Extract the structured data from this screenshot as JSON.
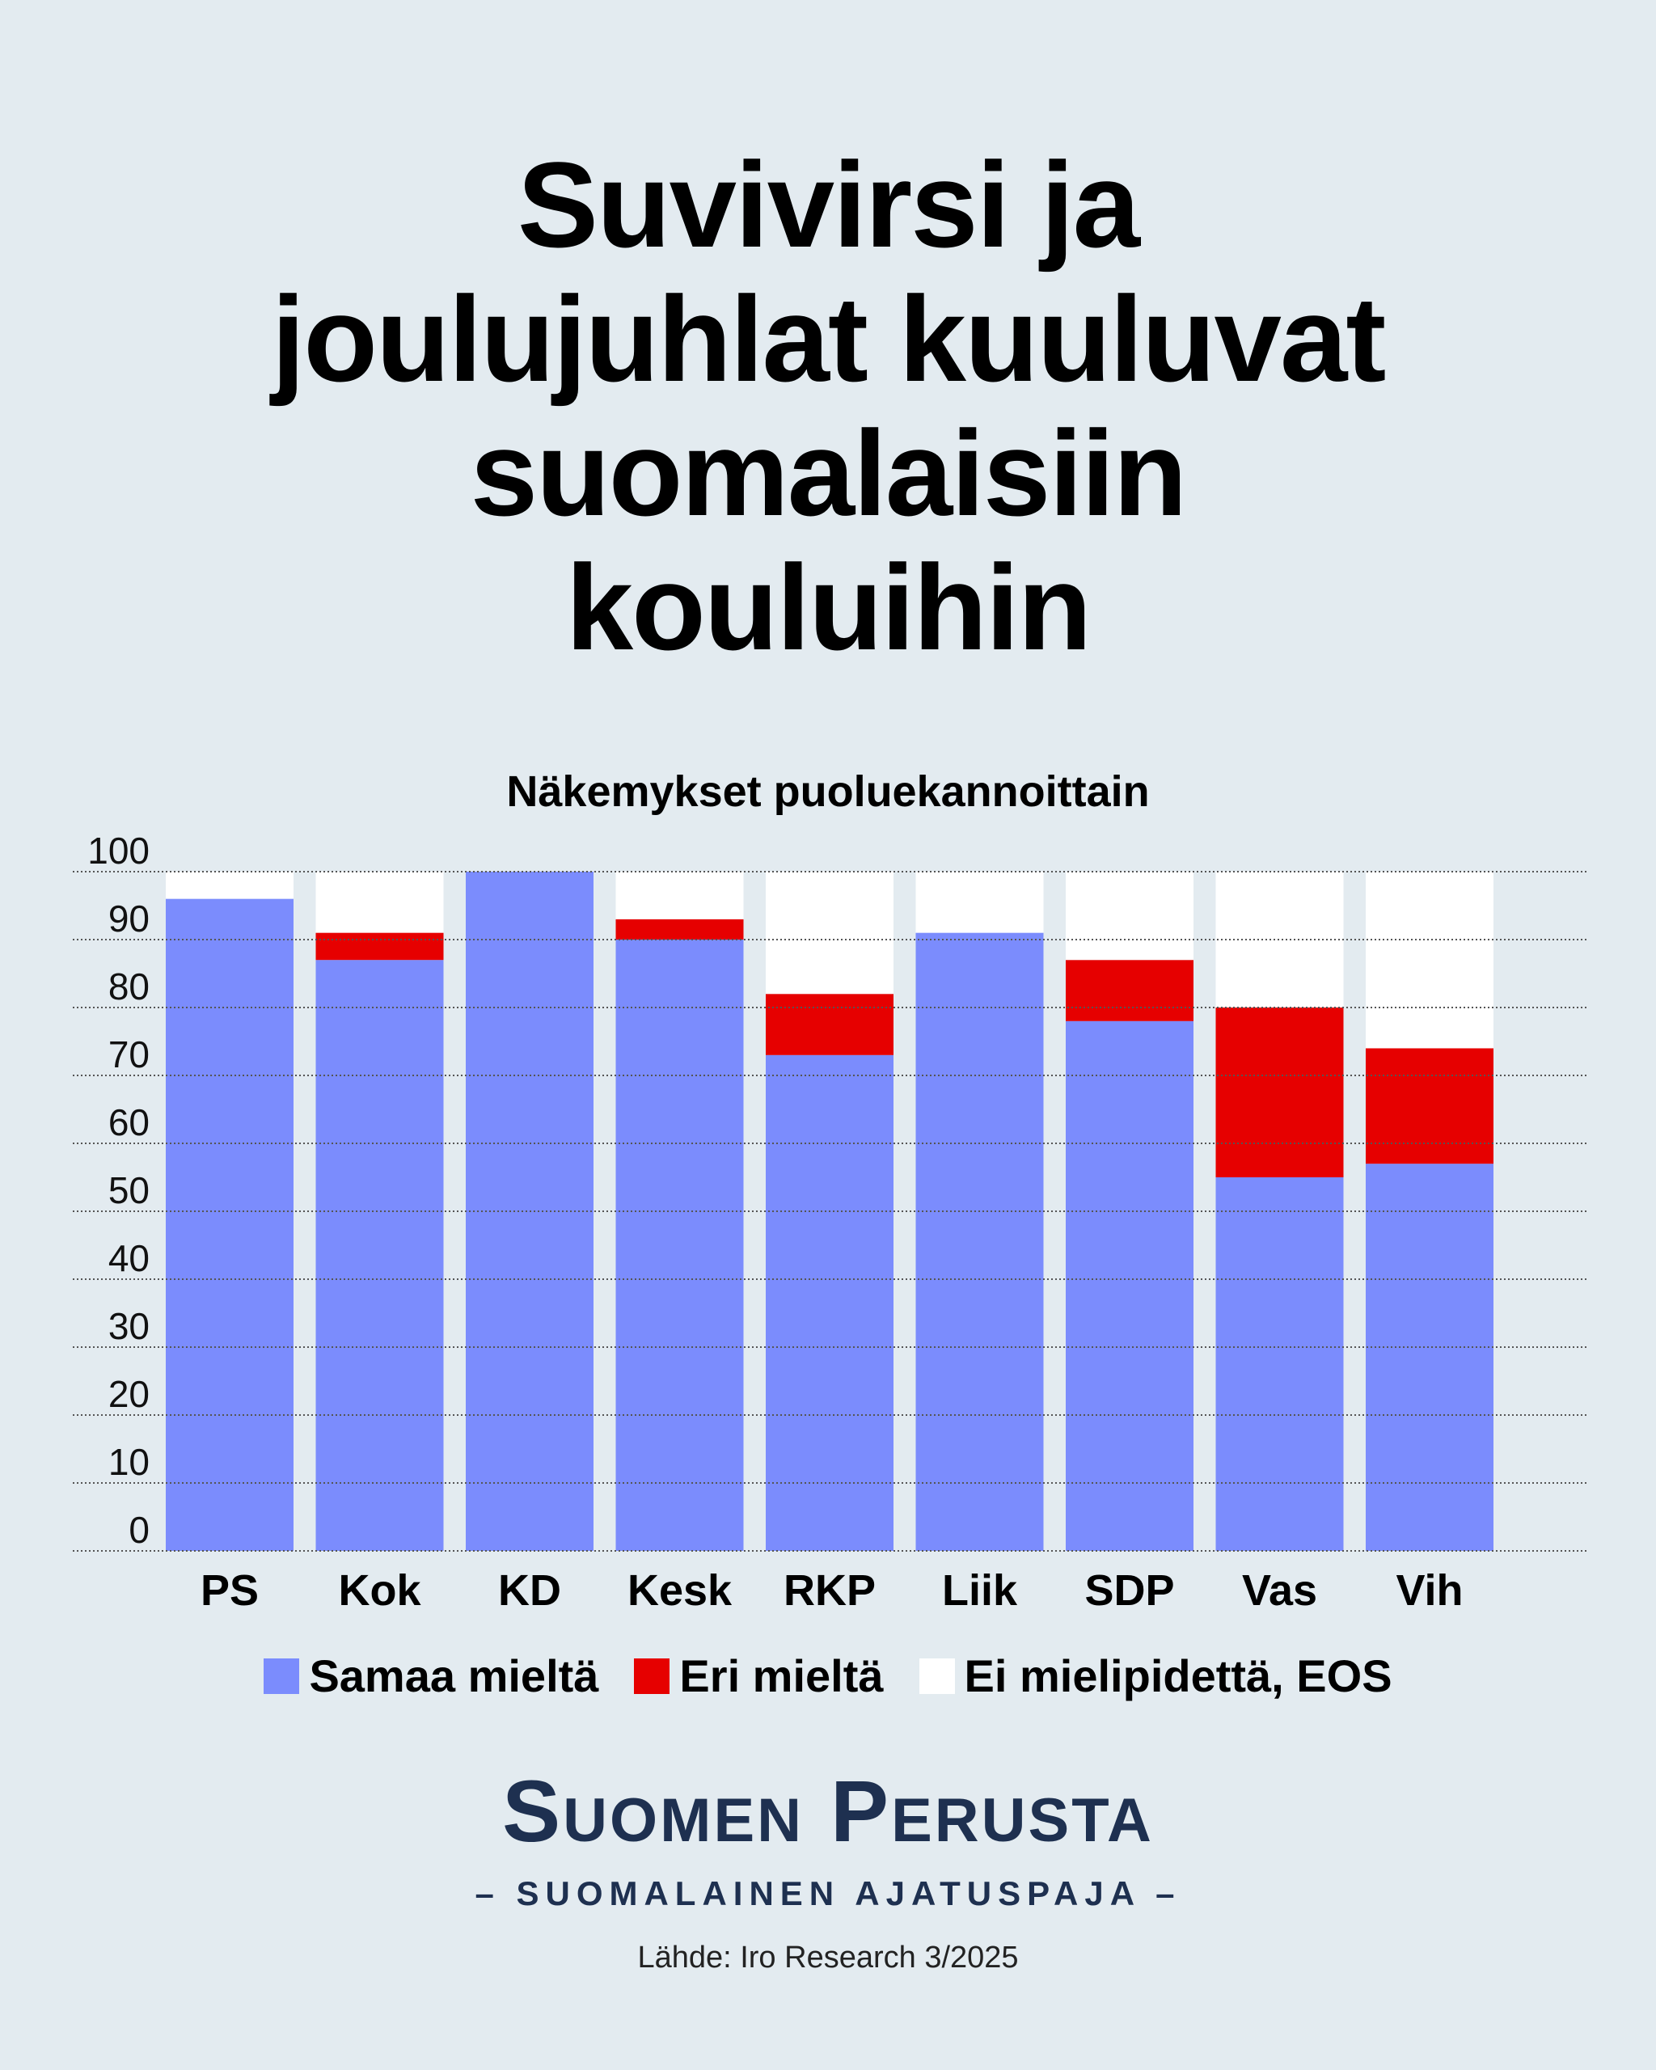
{
  "title_lines": [
    "Suvivirsi ja",
    "joulujuhlat kuuluvat",
    "suomalaisiin",
    "kouluihin"
  ],
  "brand": {
    "name": "Suomen Perusta",
    "tagline": "– SUOMALAINEN AJATUSPAJA –"
  },
  "source": "Lähde: Iro Research 3/2025",
  "colors": {
    "agree": "#7b8cfd",
    "disagree": "#e60000",
    "no_opinion": "#ffffff",
    "background": "#e3ebf0",
    "brand": "#1e3050"
  },
  "chart_data": {
    "type": "bar",
    "stacked": true,
    "title": "Näkemykset puoluekannoittain",
    "categories": [
      "PS",
      "Kok",
      "KD",
      "Kesk",
      "RKP",
      "Liik",
      "SDP",
      "Vas",
      "Vih"
    ],
    "series": [
      {
        "name": "Samaa mieltä",
        "values": [
          96,
          87,
          100,
          90,
          73,
          91,
          78,
          55,
          57
        ]
      },
      {
        "name": "Eri mieltä",
        "values": [
          0,
          4,
          0,
          3,
          9,
          0,
          9,
          25,
          17
        ]
      },
      {
        "name": "Ei mielipidettä, EOS",
        "values": [
          4,
          9,
          0,
          7,
          18,
          9,
          13,
          20,
          26
        ]
      }
    ],
    "ylim": [
      0,
      100
    ],
    "yticks": [
      "0",
      "10",
      "20",
      "30",
      "40",
      "50",
      "60",
      "70",
      "80",
      "90",
      "100"
    ],
    "grid": true,
    "legend_position": "bottom"
  }
}
